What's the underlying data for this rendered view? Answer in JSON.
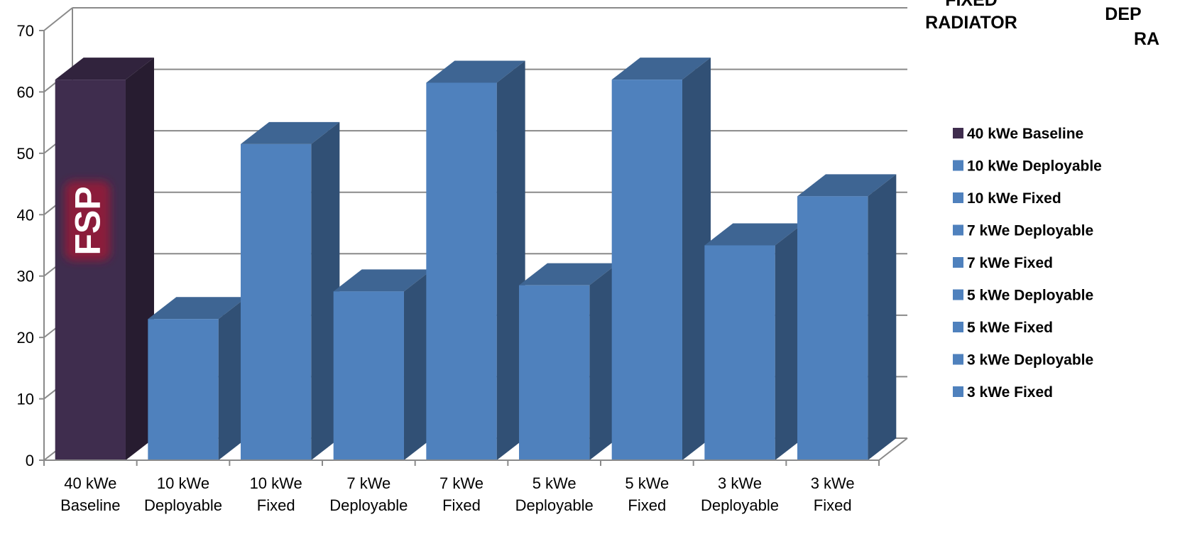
{
  "chart_data": {
    "type": "bar",
    "title": "",
    "xlabel": "",
    "ylabel": "",
    "ylim": [
      0,
      70
    ],
    "y_ticks": [
      0,
      10,
      20,
      30,
      40,
      50,
      60,
      70
    ],
    "grid": true,
    "legend_position": "right",
    "categories": [
      [
        "40 kWe",
        "Baseline"
      ],
      [
        "10 kWe",
        "Deployable"
      ],
      [
        "10 kWe",
        "Fixed"
      ],
      [
        "7 kWe",
        "Deployable"
      ],
      [
        "7 kWe",
        "Fixed"
      ],
      [
        "5 kWe",
        "Deployable"
      ],
      [
        "5 kWe",
        "Fixed"
      ],
      [
        "3 kWe",
        "Deployable"
      ],
      [
        "3 kWe",
        "Fixed"
      ]
    ],
    "series": [
      {
        "name": "40 kWe Baseline",
        "values": [
          62,
          null,
          null,
          null,
          null,
          null,
          null,
          null,
          null
        ],
        "color": "#3f2d4e"
      },
      {
        "name": "10 kWe Deployable",
        "values": [
          null,
          23,
          null,
          null,
          null,
          null,
          null,
          null,
          null
        ],
        "color": "#4f81bd"
      },
      {
        "name": "10 kWe Fixed",
        "values": [
          null,
          null,
          51.5,
          null,
          null,
          null,
          null,
          null,
          null
        ],
        "color": "#4f81bd"
      },
      {
        "name": "7 kWe Deployable",
        "values": [
          null,
          null,
          null,
          27.5,
          null,
          null,
          null,
          null,
          null
        ],
        "color": "#4f81bd"
      },
      {
        "name": "7 kWe Fixed",
        "values": [
          null,
          null,
          null,
          null,
          61.5,
          null,
          null,
          null,
          null
        ],
        "color": "#4f81bd"
      },
      {
        "name": "5 kWe Deployable",
        "values": [
          null,
          null,
          null,
          null,
          null,
          28.5,
          null,
          null,
          null
        ],
        "color": "#4f81bd"
      },
      {
        "name": "5 kWe Fixed",
        "values": [
          null,
          null,
          null,
          null,
          null,
          null,
          62,
          null,
          null
        ],
        "color": "#4f81bd"
      },
      {
        "name": "3 kWe Deployable",
        "values": [
          null,
          null,
          null,
          null,
          null,
          null,
          null,
          35,
          null
        ],
        "color": "#4f81bd"
      },
      {
        "name": "3 kWe Fixed",
        "values": [
          null,
          null,
          null,
          null,
          null,
          null,
          null,
          null,
          43
        ],
        "color": "#4f81bd"
      }
    ],
    "annotations": {
      "bar_label": "FSP",
      "right_labels": [
        "FIXED",
        "RADIATOR",
        "DEP",
        "RA"
      ]
    }
  },
  "colors": {
    "baseline": "#3f2d4e",
    "bars": "#4f81bd",
    "fsp_glow": "#8b1a3a"
  }
}
